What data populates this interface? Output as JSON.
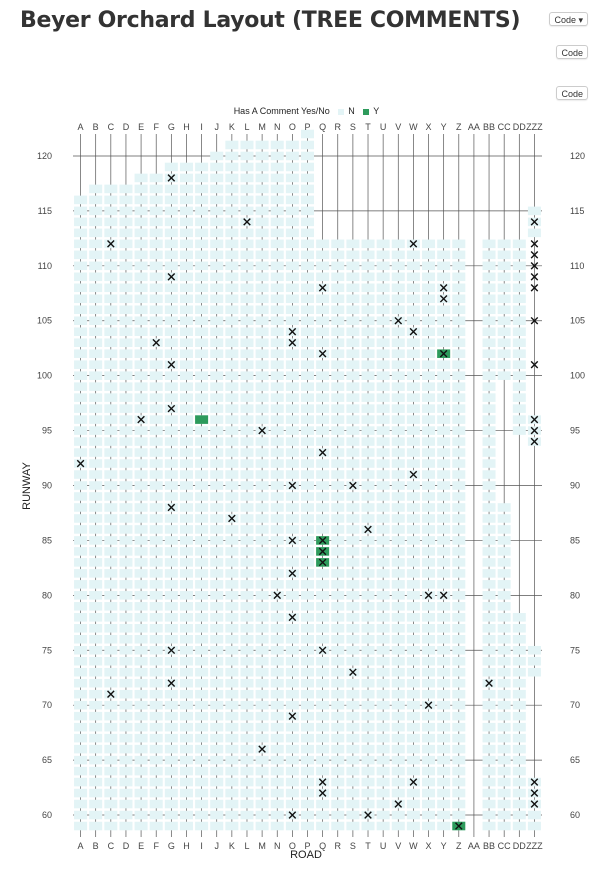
{
  "page": {
    "title": "Beyer Orchard Layout (TREE COMMENTS)",
    "code_buttons": [
      "Code",
      "Code",
      "Code"
    ]
  },
  "colors": {
    "no": "#e3f4f6",
    "yes": "#2e9b5c",
    "grid": "#555555",
    "cross": "#111111"
  },
  "chart_data": {
    "type": "heatmap",
    "legend": {
      "title": "Has A Comment Yes/No",
      "entries": [
        "N",
        "Y"
      ],
      "position": "top"
    },
    "xlabel": "ROAD",
    "ylabel": "RUNWAY",
    "x_categories": [
      "A",
      "B",
      "C",
      "D",
      "E",
      "F",
      "G",
      "H",
      "I",
      "J",
      "K",
      "L",
      "M",
      "N",
      "O",
      "P",
      "Q",
      "R",
      "S",
      "T",
      "U",
      "V",
      "W",
      "X",
      "Y",
      "Z",
      "AA",
      "BB",
      "CC",
      "DD",
      "ZZZ"
    ],
    "y_ticks": [
      60,
      65,
      70,
      75,
      80,
      85,
      90,
      95,
      100,
      105,
      110,
      115,
      120
    ],
    "ylim": [
      58,
      122
    ],
    "tree_columns": [
      {
        "road": "A",
        "runways": [
          59,
          116
        ]
      },
      {
        "road": "B",
        "runways": [
          59,
          117
        ]
      },
      {
        "road": "C",
        "runways": [
          59,
          117
        ]
      },
      {
        "road": "D",
        "runways": [
          59,
          117
        ]
      },
      {
        "road": "E",
        "runways": [
          59,
          118
        ]
      },
      {
        "road": "F",
        "runways": [
          59,
          118
        ]
      },
      {
        "road": "G",
        "runways": [
          59,
          119
        ]
      },
      {
        "road": "H",
        "runways": [
          59,
          119
        ]
      },
      {
        "road": "I",
        "runways": [
          59,
          119
        ]
      },
      {
        "road": "J",
        "runways": [
          59,
          120
        ]
      },
      {
        "road": "K",
        "runways": [
          59,
          121
        ]
      },
      {
        "road": "L",
        "runways": [
          59,
          121
        ]
      },
      {
        "road": "M",
        "runways": [
          59,
          121
        ]
      },
      {
        "road": "N",
        "runways": [
          59,
          121
        ]
      },
      {
        "road": "O",
        "runways": [
          59,
          121
        ]
      },
      {
        "road": "P",
        "runways": [
          59,
          122
        ]
      },
      {
        "road": "Q",
        "runways": [
          59,
          112
        ]
      },
      {
        "road": "R",
        "runways": [
          59,
          112
        ]
      },
      {
        "road": "S",
        "runways": [
          59,
          112
        ]
      },
      {
        "road": "T",
        "runways": [
          59,
          112
        ]
      },
      {
        "road": "U",
        "runways": [
          59,
          112
        ]
      },
      {
        "road": "V",
        "runways": [
          59,
          112
        ]
      },
      {
        "road": "W",
        "runways": [
          59,
          112
        ]
      },
      {
        "road": "X",
        "runways": [
          59,
          112
        ]
      },
      {
        "road": "Y",
        "runways": [
          59,
          112
        ]
      },
      {
        "road": "Z",
        "runways": [
          59,
          112
        ]
      },
      {
        "road": "BB",
        "runways": [
          59,
          112
        ]
      },
      {
        "road": "CC",
        "runways": [
          59,
          112
        ],
        "skip": [
          [
            89,
            99
          ]
        ]
      },
      {
        "road": "DD",
        "runways": [
          59,
          112
        ],
        "skip": [
          [
            79,
            94
          ]
        ]
      },
      {
        "road": "ZZZ",
        "runways": [
          59,
          115
        ],
        "skip": [
          [
            64,
            72
          ],
          [
            76,
            93
          ],
          [
            97,
            112
          ]
        ]
      }
    ],
    "comments_no": [
      {
        "x": "G",
        "y": 118
      },
      {
        "x": "L",
        "y": 114
      },
      {
        "x": "C",
        "y": 112
      },
      {
        "x": "W",
        "y": 112
      },
      {
        "x": "G",
        "y": 109
      },
      {
        "x": "Q",
        "y": 108
      },
      {
        "x": "Y",
        "y": 108
      },
      {
        "x": "Y",
        "y": 107
      },
      {
        "x": "V",
        "y": 105
      },
      {
        "x": "O",
        "y": 104
      },
      {
        "x": "W",
        "y": 104
      },
      {
        "x": "F",
        "y": 103
      },
      {
        "x": "O",
        "y": 103
      },
      {
        "x": "Q",
        "y": 102
      },
      {
        "x": "G",
        "y": 101
      },
      {
        "x": "G",
        "y": 97
      },
      {
        "x": "E",
        "y": 96
      },
      {
        "x": "M",
        "y": 95
      },
      {
        "x": "Q",
        "y": 93
      },
      {
        "x": "A",
        "y": 92
      },
      {
        "x": "W",
        "y": 91
      },
      {
        "x": "O",
        "y": 90
      },
      {
        "x": "S",
        "y": 90
      },
      {
        "x": "G",
        "y": 88
      },
      {
        "x": "K",
        "y": 87
      },
      {
        "x": "T",
        "y": 86
      },
      {
        "x": "O",
        "y": 85
      },
      {
        "x": "O",
        "y": 82
      },
      {
        "x": "N",
        "y": 80
      },
      {
        "x": "X",
        "y": 80
      },
      {
        "x": "Y",
        "y": 80
      },
      {
        "x": "O",
        "y": 78
      },
      {
        "x": "G",
        "y": 75
      },
      {
        "x": "Q",
        "y": 75
      },
      {
        "x": "S",
        "y": 73
      },
      {
        "x": "G",
        "y": 72
      },
      {
        "x": "BB",
        "y": 72
      },
      {
        "x": "C",
        "y": 71
      },
      {
        "x": "X",
        "y": 70
      },
      {
        "x": "O",
        "y": 69
      },
      {
        "x": "M",
        "y": 66
      },
      {
        "x": "Q",
        "y": 63
      },
      {
        "x": "W",
        "y": 63
      },
      {
        "x": "Q",
        "y": 62
      },
      {
        "x": "V",
        "y": 61
      },
      {
        "x": "O",
        "y": 60
      },
      {
        "x": "T",
        "y": 60
      },
      {
        "x": "ZZZ",
        "y": 114
      },
      {
        "x": "ZZZ",
        "y": 112
      },
      {
        "x": "ZZZ",
        "y": 111
      },
      {
        "x": "ZZZ",
        "y": 110
      },
      {
        "x": "ZZZ",
        "y": 109
      },
      {
        "x": "ZZZ",
        "y": 108
      },
      {
        "x": "ZZZ",
        "y": 105
      },
      {
        "x": "ZZZ",
        "y": 101
      },
      {
        "x": "ZZZ",
        "y": 96
      },
      {
        "x": "ZZZ",
        "y": 95
      },
      {
        "x": "ZZZ",
        "y": 94
      },
      {
        "x": "ZZZ",
        "y": 63
      },
      {
        "x": "ZZZ",
        "y": 62
      },
      {
        "x": "ZZZ",
        "y": 61
      }
    ],
    "comments_yes": [
      {
        "x": "Y",
        "y": 102,
        "cross": true
      },
      {
        "x": "I",
        "y": 96,
        "cross": false
      },
      {
        "x": "Q",
        "y": 85,
        "cross": true
      },
      {
        "x": "Q",
        "y": 84,
        "cross": true
      },
      {
        "x": "Q",
        "y": 83,
        "cross": true
      },
      {
        "x": "Z",
        "y": 59,
        "cross": true
      }
    ]
  }
}
